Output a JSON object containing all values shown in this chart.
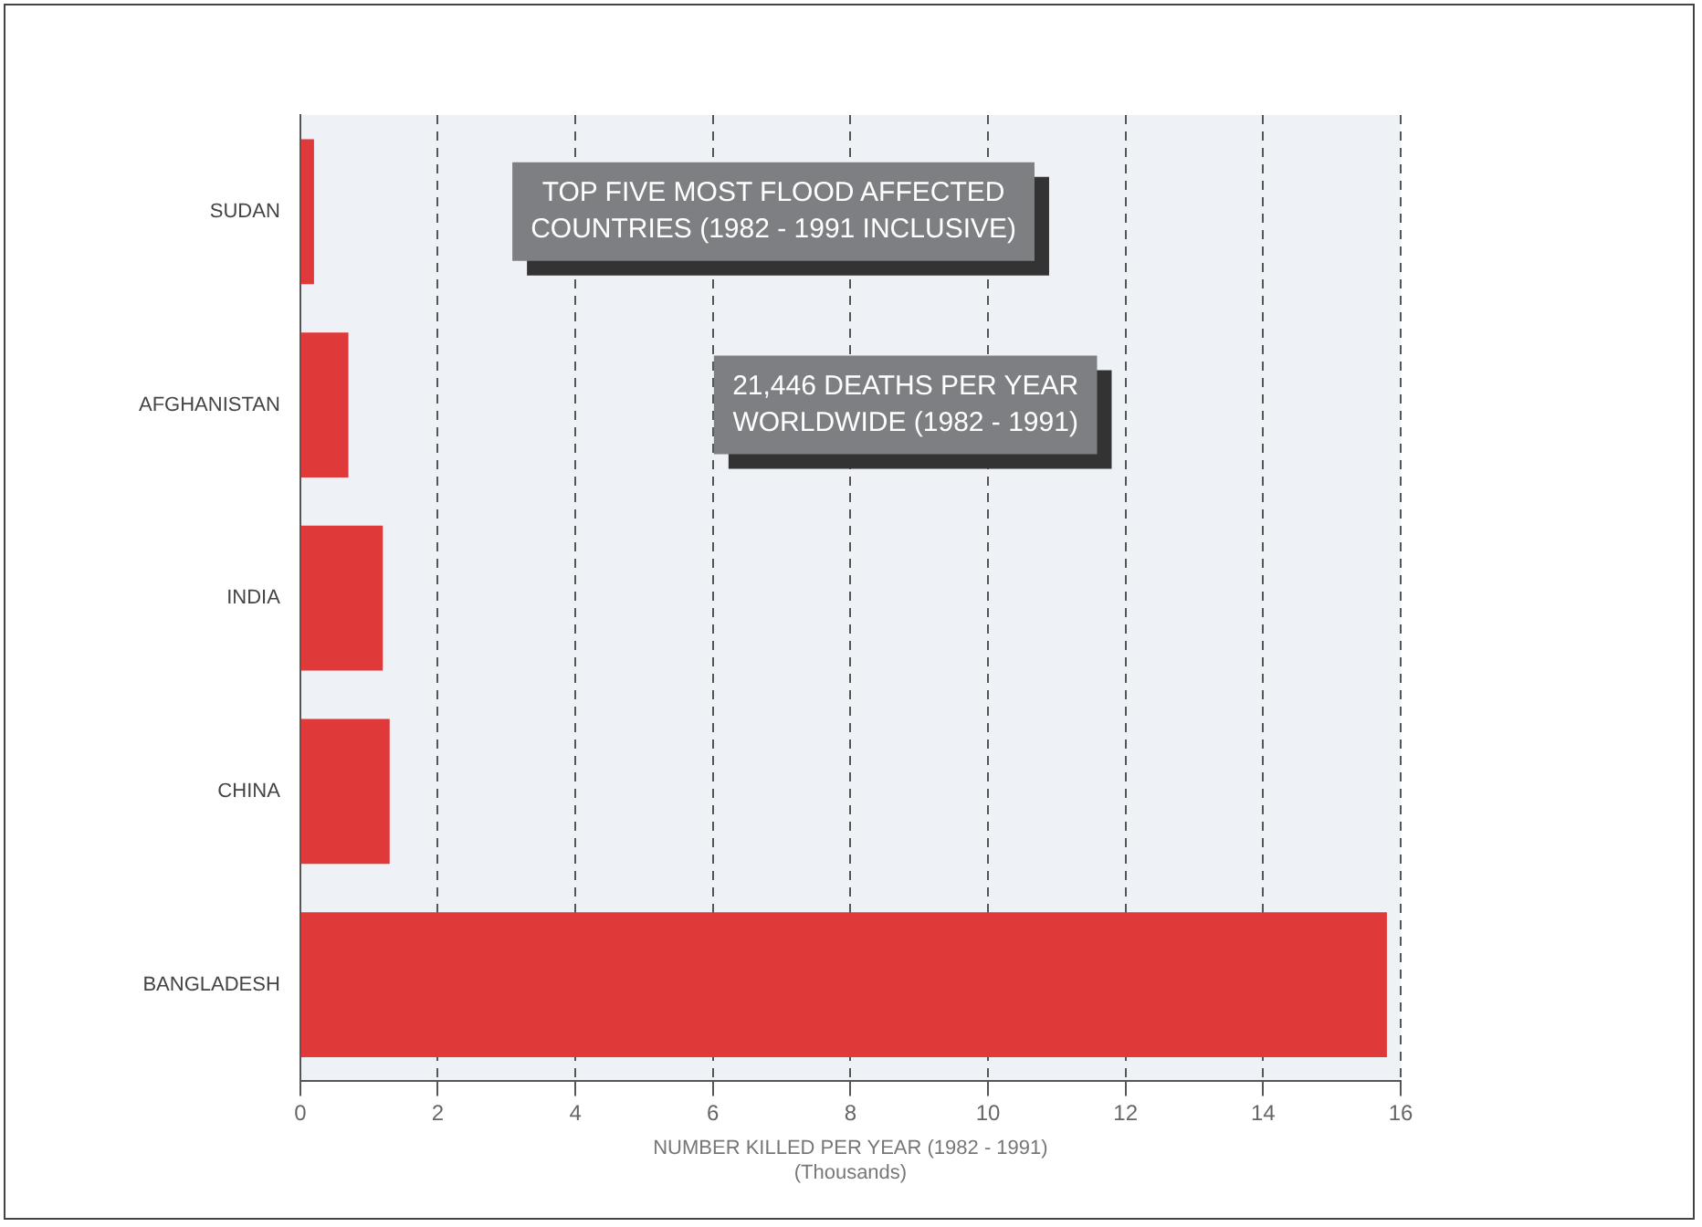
{
  "chart_data": {
    "type": "bar",
    "orientation": "horizontal",
    "categories": [
      "SUDAN",
      "AFGHANISTAN",
      "INDIA",
      "CHINA",
      "BANGLADESH"
    ],
    "values": [
      0.2,
      0.7,
      1.2,
      1.3,
      15.8
    ],
    "color": "#e0393a",
    "xlim": [
      0,
      16
    ],
    "xticks": [
      0,
      2,
      4,
      6,
      8,
      10,
      12,
      14,
      16
    ],
    "grid": "x",
    "xlabel": "NUMBER KILLED PER YEAR (1982 - 1991)\n(Thousands)",
    "annotations": [
      "TOP FIVE MOST FLOOD AFFECTED\nCOUNTRIES (1982 - 1991 INCLUSIVE)",
      "21,446 DEATHS PER YEAR\nWORLDWIDE (1982 - 1991)"
    ]
  }
}
